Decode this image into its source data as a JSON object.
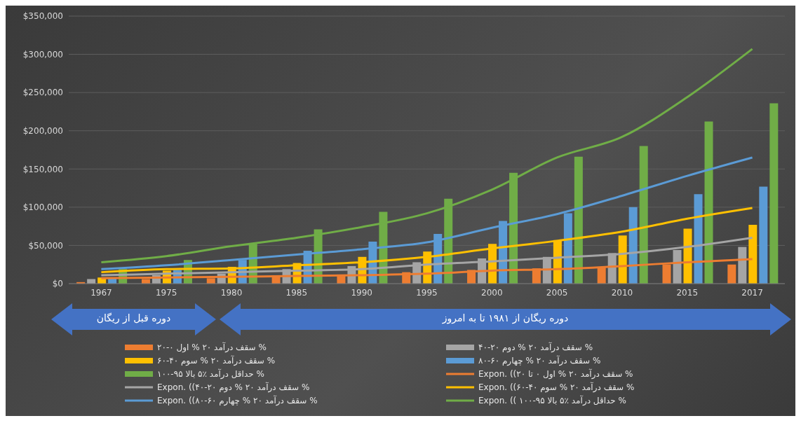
{
  "chart_data": {
    "type": "bar",
    "categories": [
      "1967",
      "1975",
      "1980",
      "1985",
      "1990",
      "1995",
      "2000",
      "2005",
      "2010",
      "2015",
      "2017"
    ],
    "series": [
      {
        "name": "سقف درآمد ۲۰ % اول ۰-۲۰ %",
        "color": "#ed7d31",
        "values": [
          2000,
          6000,
          7000,
          11000,
          12000,
          15000,
          18000,
          20000,
          22000,
          25000,
          25000
        ]
      },
      {
        "name": "سقف درآمد ۲۰ % دوم ۲۰-۴۰ %",
        "color": "#a5a5a5",
        "values": [
          6000,
          11000,
          13000,
          19000,
          23000,
          28000,
          33000,
          35000,
          40000,
          44000,
          48000
        ]
      },
      {
        "name": "سقف درآمد ۲۰ % سوم ۴۰-۶۰ %",
        "color": "#ffc000",
        "values": [
          8000,
          17000,
          22000,
          27000,
          35000,
          42000,
          52000,
          57000,
          63000,
          72000,
          77000
        ]
      },
      {
        "name": "سقف درآمد ۲۰ % چهارم ۶۰-۸۰ %",
        "color": "#5b9bd5",
        "values": [
          8000,
          18000,
          31000,
          43000,
          55000,
          65000,
          82000,
          92000,
          100000,
          117000,
          127000
        ]
      },
      {
        "name": "حداقل درآمد ٪۵ بالا ۹۵-۱۰۰ %",
        "color": "#70ad47",
        "values": [
          19000,
          31000,
          52000,
          71000,
          94000,
          111000,
          145000,
          166000,
          180000,
          212000,
          236000
        ]
      },
      {
        "type": "line",
        "name": "Expon. ((سقف درآمد ۲۰ % اول ۰ تا ۲۰ %",
        "color": "#ed7d31",
        "values": [
          7000,
          8000,
          9000,
          10000,
          11000,
          13000,
          17000,
          19000,
          23000,
          28000,
          32000
        ]
      },
      {
        "type": "line",
        "name": "Expon. ((سقف درآمد ۲۰ % دوم ۲۰-۴۰ %",
        "color": "#a5a5a5",
        "values": [
          11000,
          13000,
          15000,
          17000,
          19000,
          25000,
          29000,
          34000,
          39000,
          48000,
          60000
        ]
      },
      {
        "type": "line",
        "name": "Expon. ((سقف درآمد ۲۰ % سوم ۴۰-۶۰ %",
        "color": "#ffc000",
        "values": [
          15000,
          19000,
          20000,
          24000,
          28000,
          35000,
          46000,
          56000,
          68000,
          85000,
          99000
        ]
      },
      {
        "type": "line",
        "name": "Expon. ((سقف درآمد ۲۰ % چهارم ۶۰-۸۰ %",
        "color": "#5b9bd5",
        "values": [
          19000,
          24000,
          31000,
          38000,
          45000,
          54000,
          73000,
          91000,
          115000,
          141000,
          165000
        ]
      },
      {
        "type": "line",
        "name": "Expon. (( حداقل درآمد ٪۵ بالا ۹۵-۱۰۰ %",
        "color": "#70ad47",
        "values": [
          28000,
          36000,
          49000,
          60000,
          74000,
          92000,
          123000,
          165000,
          192000,
          244000,
          307000
        ]
      }
    ],
    "ylim": [
      0,
      350000
    ],
    "yticks": [
      {
        "value": 0,
        "label": "$0"
      },
      {
        "value": 50000,
        "label": "$50,000"
      },
      {
        "value": 100000,
        "label": "$100,000"
      },
      {
        "value": 150000,
        "label": "$150,000"
      },
      {
        "value": 200000,
        "label": "$200,000"
      },
      {
        "value": 250000,
        "label": "$250,000"
      },
      {
        "value": 300000,
        "label": "$300,000"
      },
      {
        "value": 350000,
        "label": "$350,000"
      }
    ],
    "grid": "y",
    "legend": "bottom",
    "annotations": [
      "دوره قبل از ریگان",
      "دوره ریگان از ۱۹۸۱ تا به امروز"
    ]
  }
}
